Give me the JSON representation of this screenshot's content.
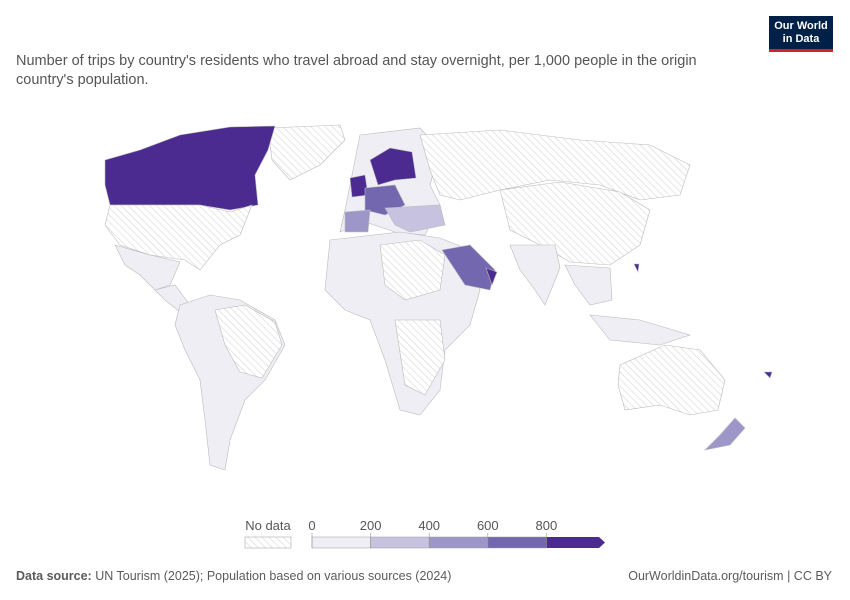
{
  "logo": {
    "line1": "Our World",
    "line2": "in Data"
  },
  "subtitle": "Number of trips by country's residents who travel abroad and stay overnight, per 1,000 people in the origin country's population.",
  "legend": {
    "no_data_label": "No data",
    "ticks": [
      0,
      200,
      400,
      600,
      800
    ],
    "colors": [
      "#efeef5",
      "#c6c2df",
      "#9c96c9",
      "#7368b0",
      "#4c2b90"
    ]
  },
  "footer": {
    "source_label": "Data source:",
    "source_text": "UN Tourism (2025); Population based on various sources (2024)",
    "url": "OurWorldinData.org/tourism | CC BY"
  }
}
